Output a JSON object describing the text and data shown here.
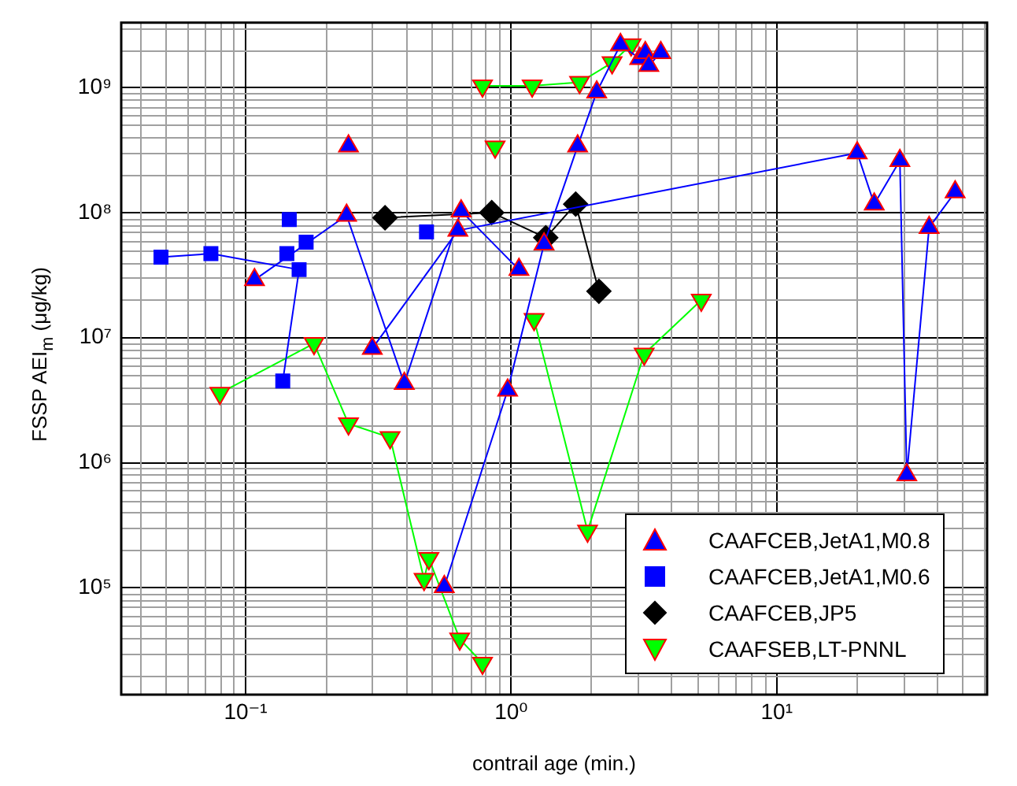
{
  "chart_data": {
    "type": "line",
    "xlabel": "contrail age (min.)",
    "ylabel": "FSSP AEI$_{m}$ (μg/kg)",
    "log": "xy",
    "grid": true,
    "legend": "bottom right",
    "xlim": [
      0.034,
      62
    ],
    "ylim": [
      14000,
      3300000000
    ],
    "xticks": [
      {
        "value": 0.1,
        "label": "10⁻¹"
      },
      {
        "value": 1,
        "label": "10⁰"
      },
      {
        "value": 10,
        "label": "10¹"
      }
    ],
    "yticks": [
      {
        "value": 100000,
        "label": "10⁵"
      },
      {
        "value": 1000000,
        "label": "10⁶"
      },
      {
        "value": 10000000,
        "label": "10⁷"
      },
      {
        "value": 100000000,
        "label": "10⁸"
      },
      {
        "value": 1000000000,
        "label": "10⁹"
      }
    ],
    "series": [
      {
        "name": "CAAFCEB,JetA1,M0.8",
        "color": "#0000ff",
        "marker": "triangle",
        "x": [
          0.244,
          null,
          0.108,
          0.24,
          0.396,
          0.648,
          1.07,
          null,
          0.3,
          0.63,
          20.1,
          23.3,
          29.1,
          30.9,
          37.5,
          47,
          null,
          0.56,
          0.97,
          1.33,
          1.78,
          2.1,
          2.58,
          3.05,
          3.2,
          3.3,
          3.66
        ],
        "values": [
          340000000,
          null,
          29000000,
          95000000,
          4300000,
          103000000,
          35000000,
          null,
          8200000,
          72000000,
          300000000,
          117000000,
          260000000,
          800000,
          76000000,
          146000000,
          null,
          102000,
          3800000,
          56000000,
          340000000,
          920000000,
          2200000000,
          1700000000,
          1900000000,
          1500000000,
          1900000000
        ]
      },
      {
        "name": "CAAFCEB,JetA1,M0.6",
        "color": "#0000ff",
        "marker": "square",
        "x": [
          0.048,
          0.074,
          0.159,
          0.138,
          null,
          0.146,
          null,
          0.143,
          null,
          0.169,
          null,
          0.48
        ],
        "values": [
          44000000,
          47000000,
          35000000,
          4500000,
          null,
          88000000,
          null,
          47000000,
          null,
          58000000,
          null,
          70000000
        ]
      },
      {
        "name": "CAAFCEB,JP5",
        "color": "#000000",
        "marker": "diamond",
        "x": [
          0.335,
          0.845,
          1.35,
          1.75,
          2.14
        ],
        "values": [
          91000000,
          100000000,
          63000000,
          117000000,
          23500000
        ]
      },
      {
        "name": "CAAFSEB,LT-PNNL",
        "color": "#00ff00",
        "marker": "triangle-down",
        "x": [
          0.08,
          0.181,
          0.244,
          0.35,
          0.47,
          0.49,
          0.64,
          0.78,
          null,
          0.78,
          1.2,
          1.81,
          2.4,
          2.83,
          null,
          0.87,
          null,
          1.22,
          1.94,
          3.17,
          5.2
        ],
        "values": [
          3600000,
          9000000,
          2050000,
          1590000,
          117000,
          172000,
          39000,
          25000,
          null,
          1030000000,
          1030000000,
          1100000000,
          1580000000,
          2200000000,
          null,
          335000000,
          null,
          14000000,
          285000,
          7400000,
          20000000
        ]
      }
    ]
  }
}
